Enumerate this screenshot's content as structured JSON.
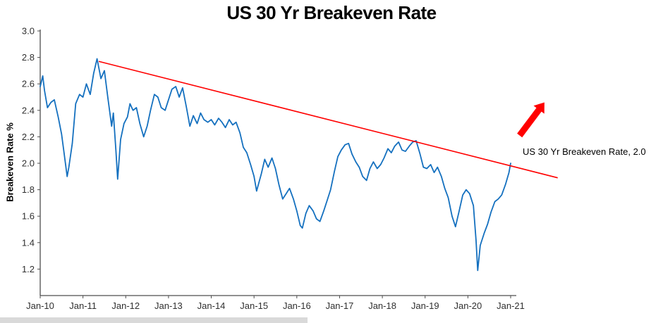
{
  "chart_data": {
    "type": "line",
    "title": "US 30 Yr Breakeven Rate",
    "xlabel": "",
    "ylabel": "Breakeven Rate %",
    "xlim": [
      2010,
      2021
    ],
    "ylim": [
      1.0,
      3.0
    ],
    "grid": false,
    "legend": "none",
    "axis_color": "#4d4d4d",
    "x_ticks": [
      {
        "value": 2010,
        "label": "Jan-10"
      },
      {
        "value": 2011,
        "label": "Jan-11"
      },
      {
        "value": 2012,
        "label": "Jan-12"
      },
      {
        "value": 2013,
        "label": "Jan-13"
      },
      {
        "value": 2014,
        "label": "Jan-14"
      },
      {
        "value": 2015,
        "label": "Jan-15"
      },
      {
        "value": 2016,
        "label": "Jan-16"
      },
      {
        "value": 2017,
        "label": "Jan-17"
      },
      {
        "value": 2018,
        "label": "Jan-18"
      },
      {
        "value": 2019,
        "label": "Jan-19"
      },
      {
        "value": 2020,
        "label": "Jan-20"
      },
      {
        "value": 2021,
        "label": "Jan-21"
      }
    ],
    "y_ticks": [
      {
        "value": 3.0,
        "label": "3.0"
      },
      {
        "value": 2.8,
        "label": "2.8"
      },
      {
        "value": 2.6,
        "label": "2.6"
      },
      {
        "value": 2.4,
        "label": "2.4"
      },
      {
        "value": 2.2,
        "label": "2.2"
      },
      {
        "value": 2.0,
        "label": "2.0"
      },
      {
        "value": 1.8,
        "label": "1.8"
      },
      {
        "value": 1.6,
        "label": "1.6"
      },
      {
        "value": 1.4,
        "label": "1.4"
      },
      {
        "value": 1.2,
        "label": "1.2"
      }
    ],
    "series": [
      {
        "name": "US 30 Yr Breakeven Rate",
        "color": "#1470bf",
        "points": [
          [
            2010.0,
            2.58
          ],
          [
            2010.06,
            2.66
          ],
          [
            2010.1,
            2.55
          ],
          [
            2010.17,
            2.42
          ],
          [
            2010.25,
            2.46
          ],
          [
            2010.33,
            2.48
          ],
          [
            2010.42,
            2.35
          ],
          [
            2010.5,
            2.22
          ],
          [
            2010.55,
            2.1
          ],
          [
            2010.63,
            1.9
          ],
          [
            2010.67,
            1.97
          ],
          [
            2010.75,
            2.15
          ],
          [
            2010.83,
            2.45
          ],
          [
            2010.92,
            2.52
          ],
          [
            2011.0,
            2.5
          ],
          [
            2011.08,
            2.6
          ],
          [
            2011.17,
            2.52
          ],
          [
            2011.25,
            2.68
          ],
          [
            2011.33,
            2.79
          ],
          [
            2011.42,
            2.64
          ],
          [
            2011.5,
            2.7
          ],
          [
            2011.58,
            2.5
          ],
          [
            2011.67,
            2.28
          ],
          [
            2011.71,
            2.38
          ],
          [
            2011.77,
            2.1
          ],
          [
            2011.81,
            1.88
          ],
          [
            2011.88,
            2.18
          ],
          [
            2011.96,
            2.3
          ],
          [
            2012.04,
            2.35
          ],
          [
            2012.1,
            2.45
          ],
          [
            2012.17,
            2.4
          ],
          [
            2012.25,
            2.42
          ],
          [
            2012.33,
            2.3
          ],
          [
            2012.42,
            2.2
          ],
          [
            2012.5,
            2.28
          ],
          [
            2012.58,
            2.4
          ],
          [
            2012.67,
            2.52
          ],
          [
            2012.75,
            2.5
          ],
          [
            2012.83,
            2.42
          ],
          [
            2012.92,
            2.4
          ],
          [
            2013.0,
            2.48
          ],
          [
            2013.08,
            2.56
          ],
          [
            2013.17,
            2.58
          ],
          [
            2013.25,
            2.5
          ],
          [
            2013.33,
            2.57
          ],
          [
            2013.42,
            2.42
          ],
          [
            2013.5,
            2.28
          ],
          [
            2013.58,
            2.36
          ],
          [
            2013.67,
            2.3
          ],
          [
            2013.75,
            2.38
          ],
          [
            2013.83,
            2.33
          ],
          [
            2013.92,
            2.31
          ],
          [
            2014.0,
            2.33
          ],
          [
            2014.08,
            2.29
          ],
          [
            2014.17,
            2.34
          ],
          [
            2014.25,
            2.31
          ],
          [
            2014.33,
            2.27
          ],
          [
            2014.42,
            2.33
          ],
          [
            2014.5,
            2.29
          ],
          [
            2014.58,
            2.31
          ],
          [
            2014.67,
            2.23
          ],
          [
            2014.75,
            2.12
          ],
          [
            2014.83,
            2.08
          ],
          [
            2014.92,
            1.99
          ],
          [
            2015.0,
            1.9
          ],
          [
            2015.06,
            1.79
          ],
          [
            2015.17,
            1.92
          ],
          [
            2015.25,
            2.03
          ],
          [
            2015.33,
            1.97
          ],
          [
            2015.42,
            2.04
          ],
          [
            2015.5,
            1.96
          ],
          [
            2015.58,
            1.84
          ],
          [
            2015.67,
            1.73
          ],
          [
            2015.75,
            1.77
          ],
          [
            2015.83,
            1.81
          ],
          [
            2015.92,
            1.73
          ],
          [
            2016.0,
            1.64
          ],
          [
            2016.08,
            1.53
          ],
          [
            2016.13,
            1.51
          ],
          [
            2016.21,
            1.62
          ],
          [
            2016.29,
            1.68
          ],
          [
            2016.38,
            1.64
          ],
          [
            2016.46,
            1.58
          ],
          [
            2016.54,
            1.56
          ],
          [
            2016.63,
            1.64
          ],
          [
            2016.71,
            1.72
          ],
          [
            2016.79,
            1.8
          ],
          [
            2016.88,
            1.94
          ],
          [
            2016.96,
            2.05
          ],
          [
            2017.04,
            2.1
          ],
          [
            2017.13,
            2.14
          ],
          [
            2017.21,
            2.15
          ],
          [
            2017.29,
            2.07
          ],
          [
            2017.38,
            2.01
          ],
          [
            2017.46,
            1.97
          ],
          [
            2017.54,
            1.9
          ],
          [
            2017.63,
            1.87
          ],
          [
            2017.71,
            1.96
          ],
          [
            2017.79,
            2.01
          ],
          [
            2017.88,
            1.96
          ],
          [
            2017.96,
            1.99
          ],
          [
            2018.04,
            2.04
          ],
          [
            2018.13,
            2.11
          ],
          [
            2018.21,
            2.08
          ],
          [
            2018.29,
            2.13
          ],
          [
            2018.38,
            2.16
          ],
          [
            2018.46,
            2.1
          ],
          [
            2018.54,
            2.09
          ],
          [
            2018.63,
            2.13
          ],
          [
            2018.71,
            2.16
          ],
          [
            2018.79,
            2.17
          ],
          [
            2018.88,
            2.07
          ],
          [
            2018.96,
            1.97
          ],
          [
            2019.04,
            1.96
          ],
          [
            2019.13,
            1.99
          ],
          [
            2019.21,
            1.93
          ],
          [
            2019.29,
            1.97
          ],
          [
            2019.38,
            1.9
          ],
          [
            2019.46,
            1.81
          ],
          [
            2019.54,
            1.74
          ],
          [
            2019.63,
            1.6
          ],
          [
            2019.71,
            1.52
          ],
          [
            2019.79,
            1.63
          ],
          [
            2019.88,
            1.76
          ],
          [
            2019.96,
            1.8
          ],
          [
            2020.04,
            1.77
          ],
          [
            2020.13,
            1.68
          ],
          [
            2020.19,
            1.42
          ],
          [
            2020.23,
            1.19
          ],
          [
            2020.29,
            1.38
          ],
          [
            2020.38,
            1.47
          ],
          [
            2020.46,
            1.54
          ],
          [
            2020.54,
            1.63
          ],
          [
            2020.63,
            1.71
          ],
          [
            2020.71,
            1.73
          ],
          [
            2020.79,
            1.76
          ],
          [
            2020.88,
            1.84
          ],
          [
            2020.96,
            1.93
          ],
          [
            2021.0,
            2.0
          ]
        ]
      }
    ],
    "trendline": {
      "color": "#ff0000",
      "from": [
        2011.37,
        2.77
      ],
      "to": [
        2022.1,
        1.89
      ]
    },
    "arrow": {
      "color": "#ff0000",
      "tail": [
        2021.21,
        2.21
      ],
      "tip": [
        2021.79,
        2.46
      ]
    },
    "annotation": {
      "text": "US 30 Yr Breakeven Rate, 2.0",
      "color": "#000000"
    }
  }
}
